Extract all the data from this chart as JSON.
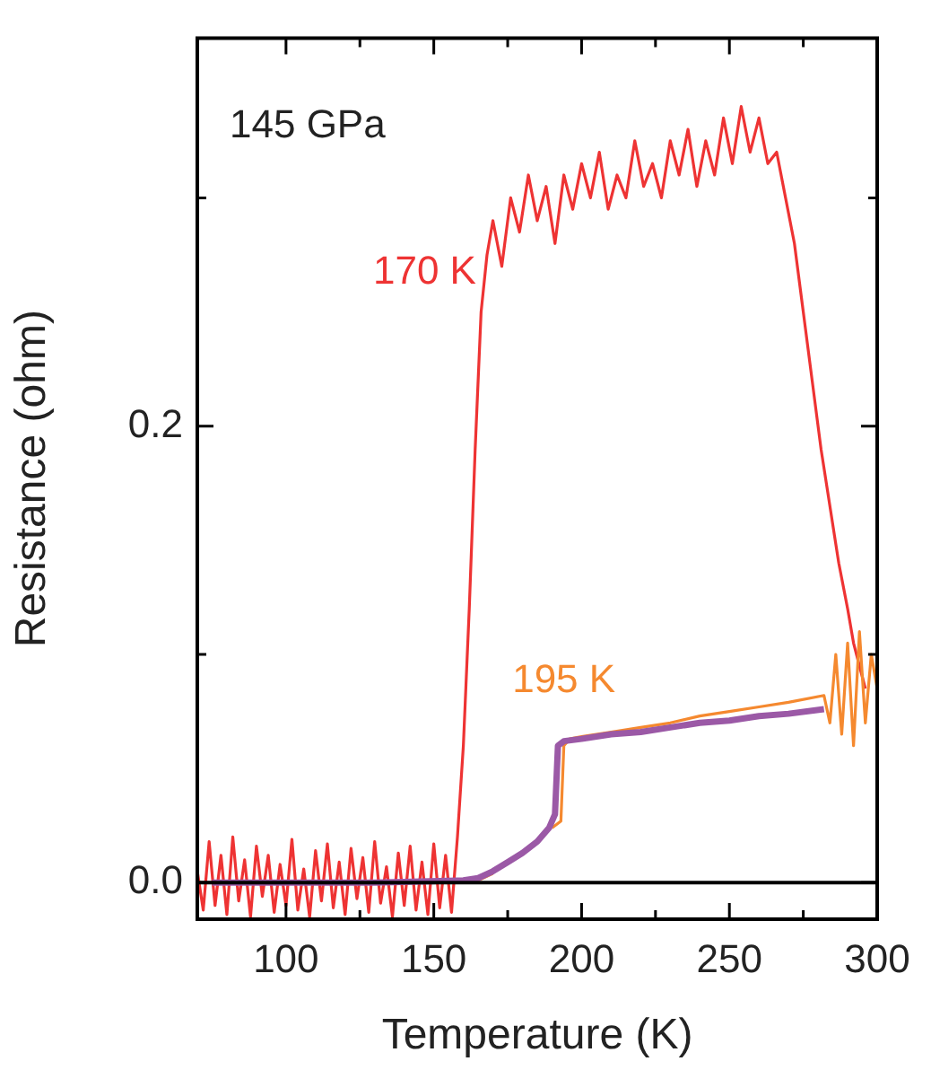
{
  "chart_data": {
    "type": "line",
    "xlabel": "Temperature (K)",
    "ylabel": "Resistance (ohm)",
    "annotations": [
      "145 GPa"
    ],
    "xlim": [
      70,
      300
    ],
    "xticks": [
      100,
      {
        "value": 125,
        "label": null
      },
      150,
      {
        "value": 175,
        "label": null
      },
      200,
      {
        "value": 225,
        "label": null
      },
      250,
      {
        "value": 275,
        "label": null
      },
      300
    ],
    "ylim": [
      -0.016,
      0.37
    ],
    "yticks": [
      {
        "value": 0,
        "label": "0.0"
      },
      {
        "value": 0.1,
        "label": null
      },
      0.2,
      {
        "value": 0.3,
        "label": null
      }
    ],
    "grid": false,
    "legend": false,
    "marker": "none",
    "line_style": "solid",
    "ref_lines": [
      {
        "axis": "y",
        "value": 0,
        "color": "#000000"
      }
    ],
    "series": [
      {
        "name": "170 K",
        "color": "#ee3333",
        "x": [
          70,
          72,
          74,
          76,
          78,
          80,
          82,
          84,
          86,
          88,
          90,
          92,
          94,
          96,
          98,
          100,
          102,
          104,
          106,
          108,
          110,
          112,
          114,
          116,
          118,
          120,
          122,
          124,
          126,
          128,
          130,
          132,
          134,
          136,
          138,
          140,
          142,
          144,
          146,
          148,
          150,
          152,
          154,
          156,
          158,
          160,
          162,
          164,
          166,
          168,
          170,
          173,
          176,
          179,
          182,
          185,
          188,
          191,
          194,
          197,
          200,
          203,
          206,
          209,
          212,
          215,
          218,
          221,
          224,
          227,
          230,
          233,
          236,
          239,
          242,
          245,
          248,
          251,
          254,
          257,
          260,
          263,
          266,
          269,
          272,
          275,
          278,
          281,
          284,
          287,
          290,
          292,
          294,
          296
        ],
        "values": [
          0.005,
          -0.012,
          0.018,
          -0.01,
          0.012,
          -0.014,
          0.02,
          -0.008,
          0.01,
          -0.015,
          0.016,
          -0.006,
          0.012,
          -0.013,
          0.008,
          -0.01,
          0.019,
          -0.012,
          0.006,
          -0.015,
          0.014,
          -0.008,
          0.017,
          -0.011,
          0.009,
          -0.014,
          0.015,
          -0.007,
          0.011,
          -0.013,
          0.018,
          -0.009,
          0.007,
          -0.015,
          0.013,
          -0.01,
          0.016,
          -0.012,
          0.009,
          -0.014,
          0.017,
          -0.011,
          0.012,
          -0.013,
          0.02,
          0.06,
          0.12,
          0.19,
          0.25,
          0.275,
          0.29,
          0.27,
          0.3,
          0.285,
          0.31,
          0.29,
          0.305,
          0.28,
          0.31,
          0.295,
          0.315,
          0.3,
          0.32,
          0.295,
          0.31,
          0.3,
          0.325,
          0.305,
          0.315,
          0.3,
          0.325,
          0.31,
          0.33,
          0.305,
          0.325,
          0.31,
          0.335,
          0.315,
          0.34,
          0.32,
          0.335,
          0.315,
          0.32,
          0.3,
          0.28,
          0.25,
          0.22,
          0.19,
          0.165,
          0.14,
          0.12,
          0.105,
          0.095,
          0.085
        ]
      },
      {
        "name": "195 K",
        "color": "#f5892f",
        "x": [
          75,
          160,
          165,
          170,
          175,
          180,
          185,
          190,
          193,
          194,
          196,
          200,
          210,
          220,
          230,
          240,
          250,
          260,
          270,
          282,
          284,
          286,
          288,
          290,
          292,
          294,
          296,
          298,
          300
        ],
        "values": [
          0,
          0,
          0.001,
          0.004,
          null,
          null,
          null,
          0.024,
          0.027,
          0.06,
          0.063,
          0.064,
          0.066,
          0.068,
          0.07,
          0.073,
          0.075,
          0.077,
          0.079,
          0.082,
          0.07,
          0.1,
          0.065,
          0.105,
          0.06,
          0.11,
          0.07,
          0.1,
          0.085
        ]
      },
      {
        "color": "#9b59a6",
        "x": [
          75,
          100,
          130,
          160,
          165,
          170,
          175,
          180,
          185,
          189,
          191,
          192,
          194,
          200,
          210,
          220,
          230,
          240,
          250,
          260,
          270,
          282
        ],
        "values": [
          0,
          0,
          0,
          0.001,
          0.002,
          0.005,
          0.009,
          0.013,
          0.018,
          0.024,
          0.03,
          0.06,
          0.062,
          0.063,
          0.065,
          0.066,
          0.068,
          0.07,
          0.071,
          0.073,
          0.074,
          0.076
        ]
      }
    ]
  }
}
